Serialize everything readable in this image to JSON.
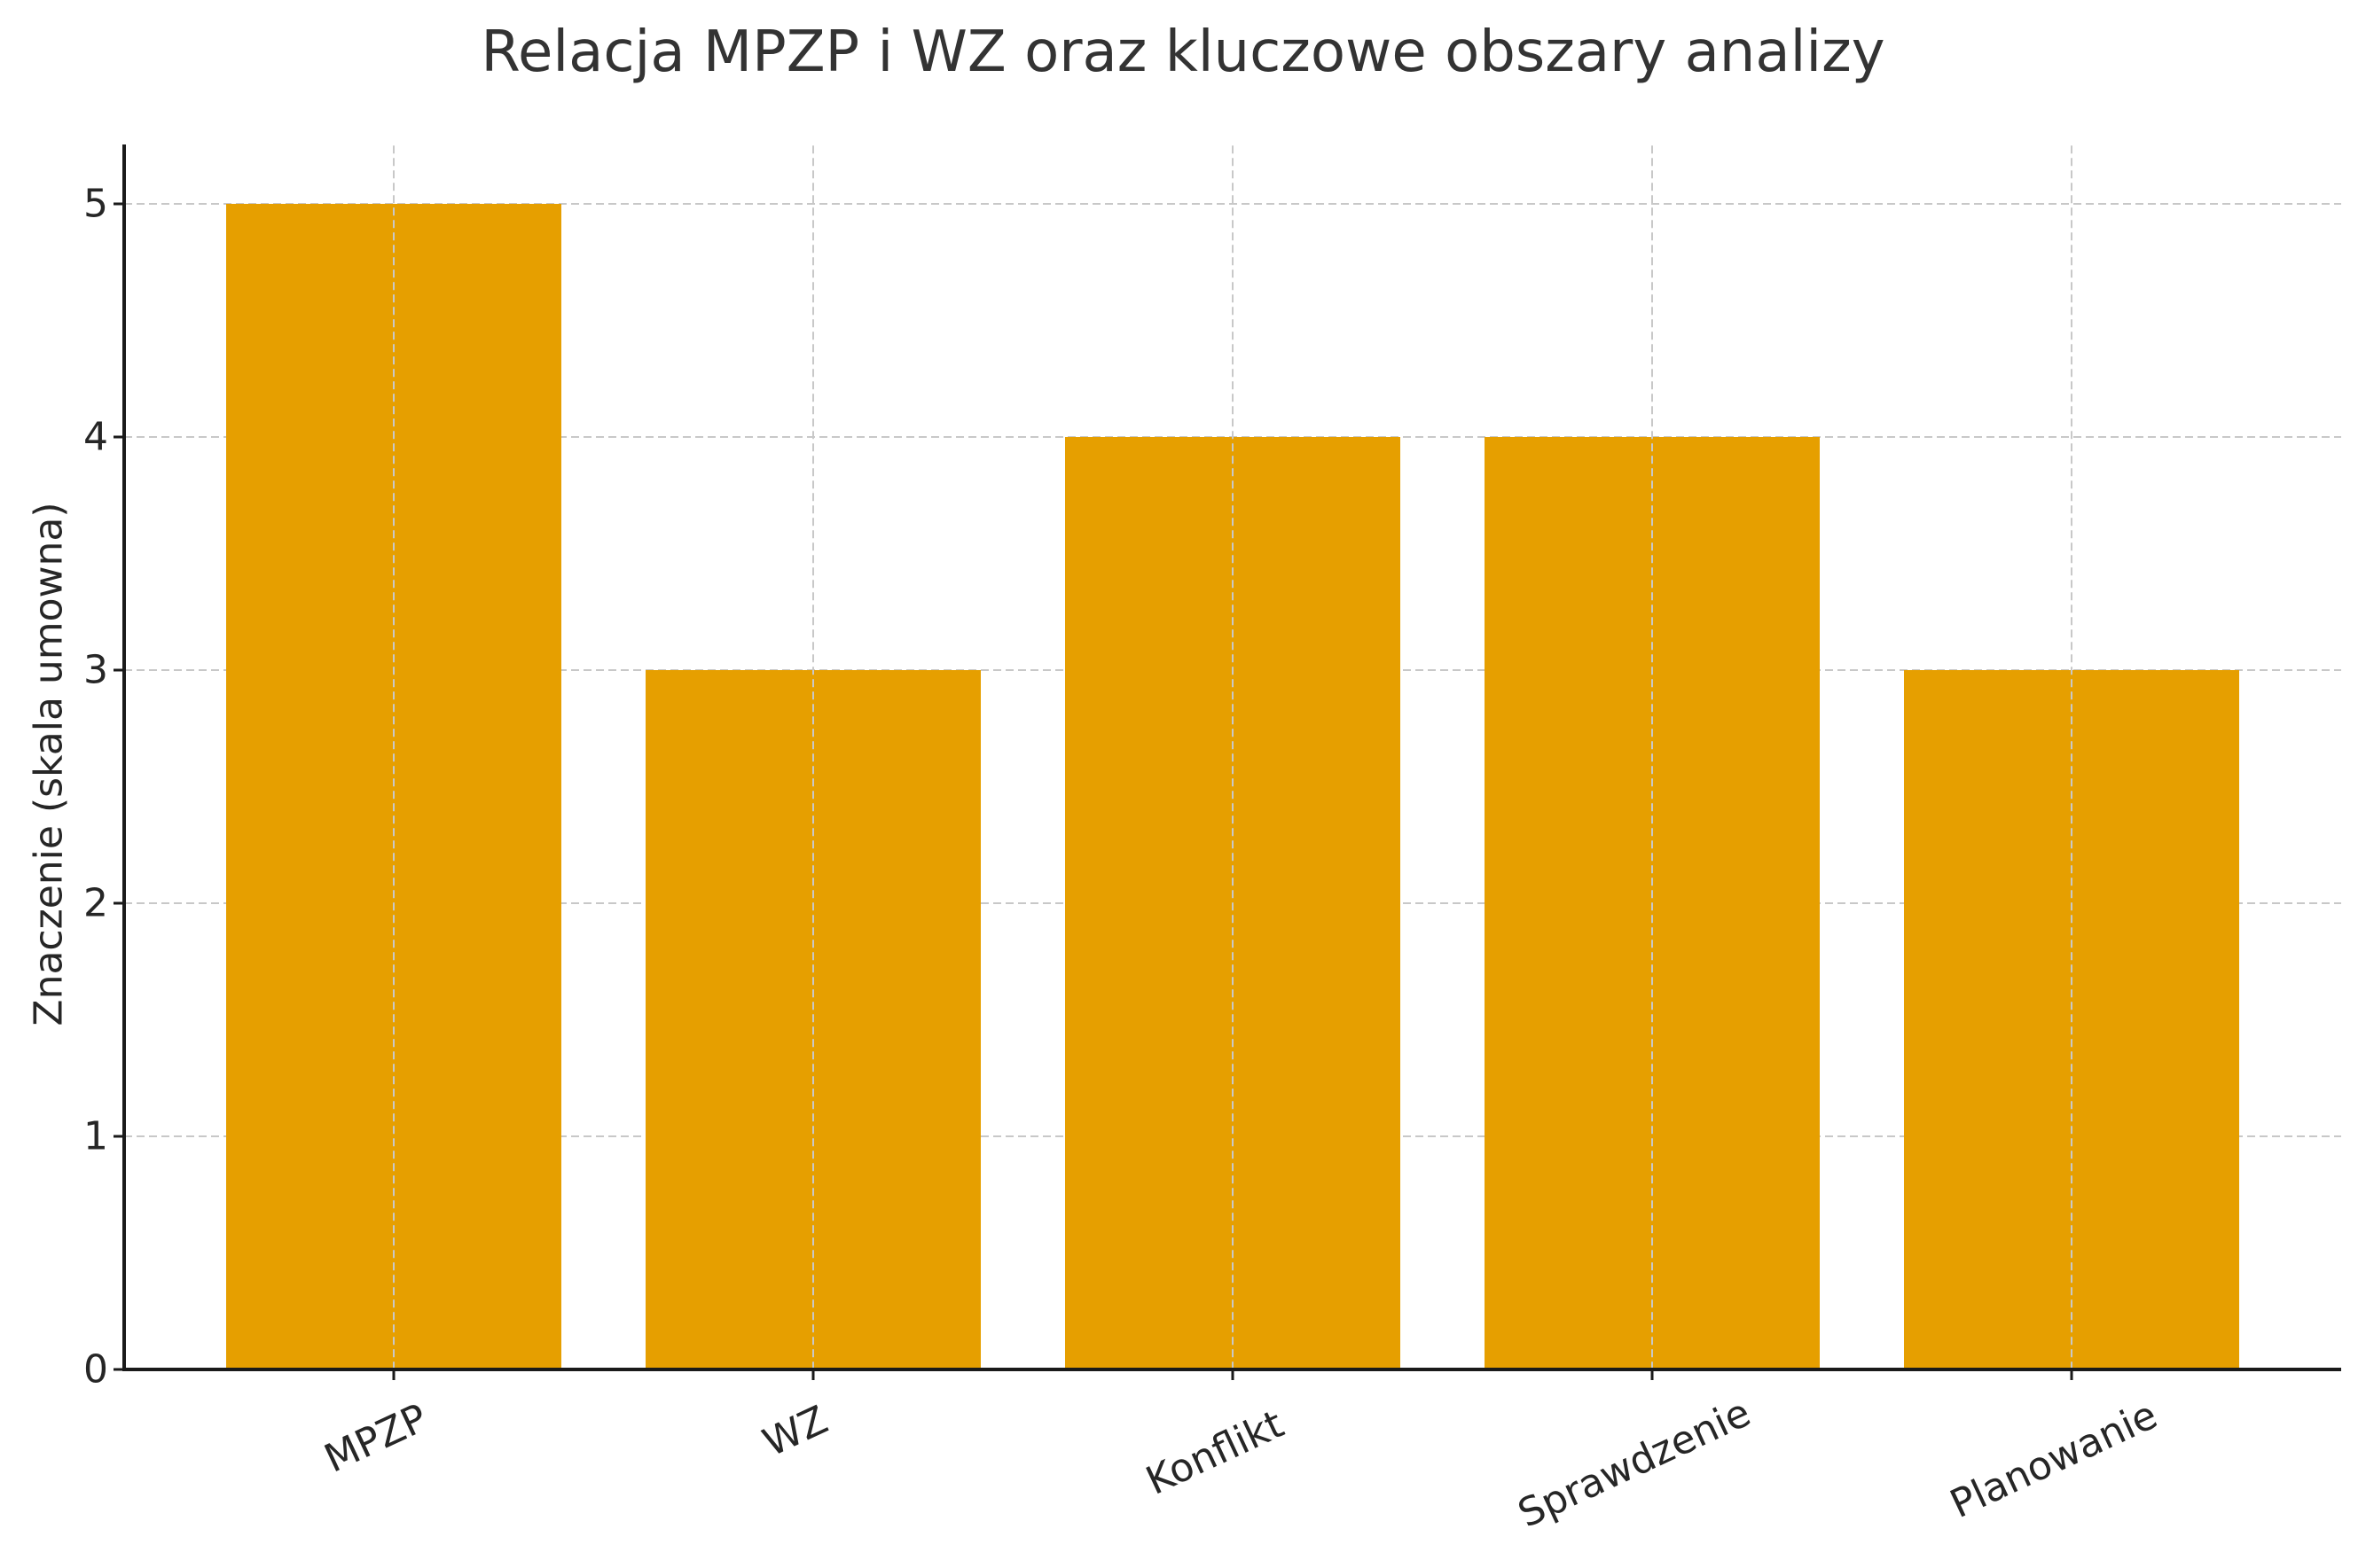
{
  "chart_data": {
    "type": "bar",
    "title": "Relacja MPZP i WZ oraz kluczowe obszary analizy",
    "xlabel": "",
    "ylabel": "Znaczenie (skala umowna)",
    "categories": [
      "MPZP",
      "WZ",
      "Konflikt",
      "Sprawdzenie",
      "Planowanie"
    ],
    "values": [
      5,
      3,
      4,
      4,
      3
    ],
    "ylim": [
      0,
      5.25
    ],
    "yticks": [
      "0",
      "1",
      "2",
      "3",
      "4",
      "5"
    ],
    "xtick_rotation": 25,
    "grid": true,
    "grid_style": "dashed",
    "bar_color": "#E69F00",
    "legend": null
  }
}
